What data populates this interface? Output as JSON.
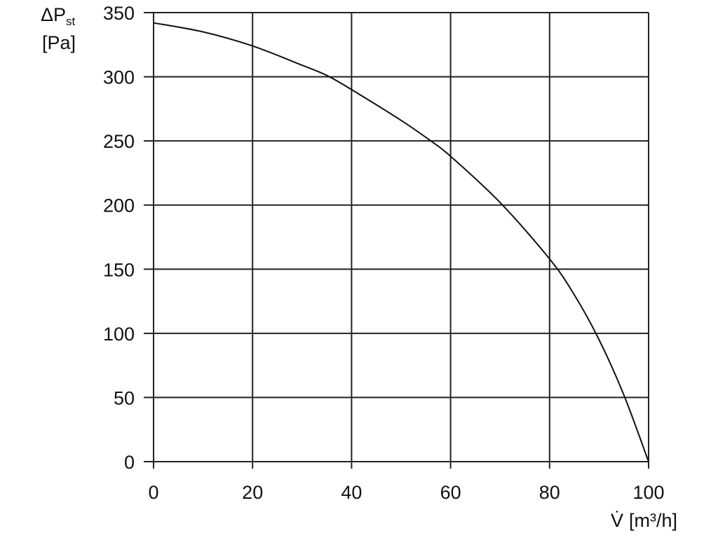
{
  "chart_data": {
    "type": "line",
    "title": "",
    "ylabel": {
      "main": "ΔP",
      "sub": "st",
      "unit": "[Pa]"
    },
    "xlabel": {
      "main": "V̇",
      "unit": "[m³/h]"
    },
    "xlim": [
      0,
      100
    ],
    "ylim": [
      0,
      350
    ],
    "xticks": [
      0,
      20,
      40,
      60,
      80,
      100
    ],
    "yticks": [
      0,
      50,
      100,
      150,
      200,
      250,
      300,
      350
    ],
    "grid": true,
    "series": [
      {
        "x": [
          0,
          10,
          20,
          30,
          35,
          40,
          50,
          56,
          60,
          70,
          80,
          85,
          90,
          95,
          100
        ],
        "y": [
          342,
          335,
          324,
          309,
          301,
          290,
          266,
          250,
          238,
          202,
          158,
          130,
          95,
          52,
          0
        ]
      }
    ]
  },
  "colors": {
    "line": "#111111",
    "grid": "#222222",
    "background": "#ffffff"
  }
}
